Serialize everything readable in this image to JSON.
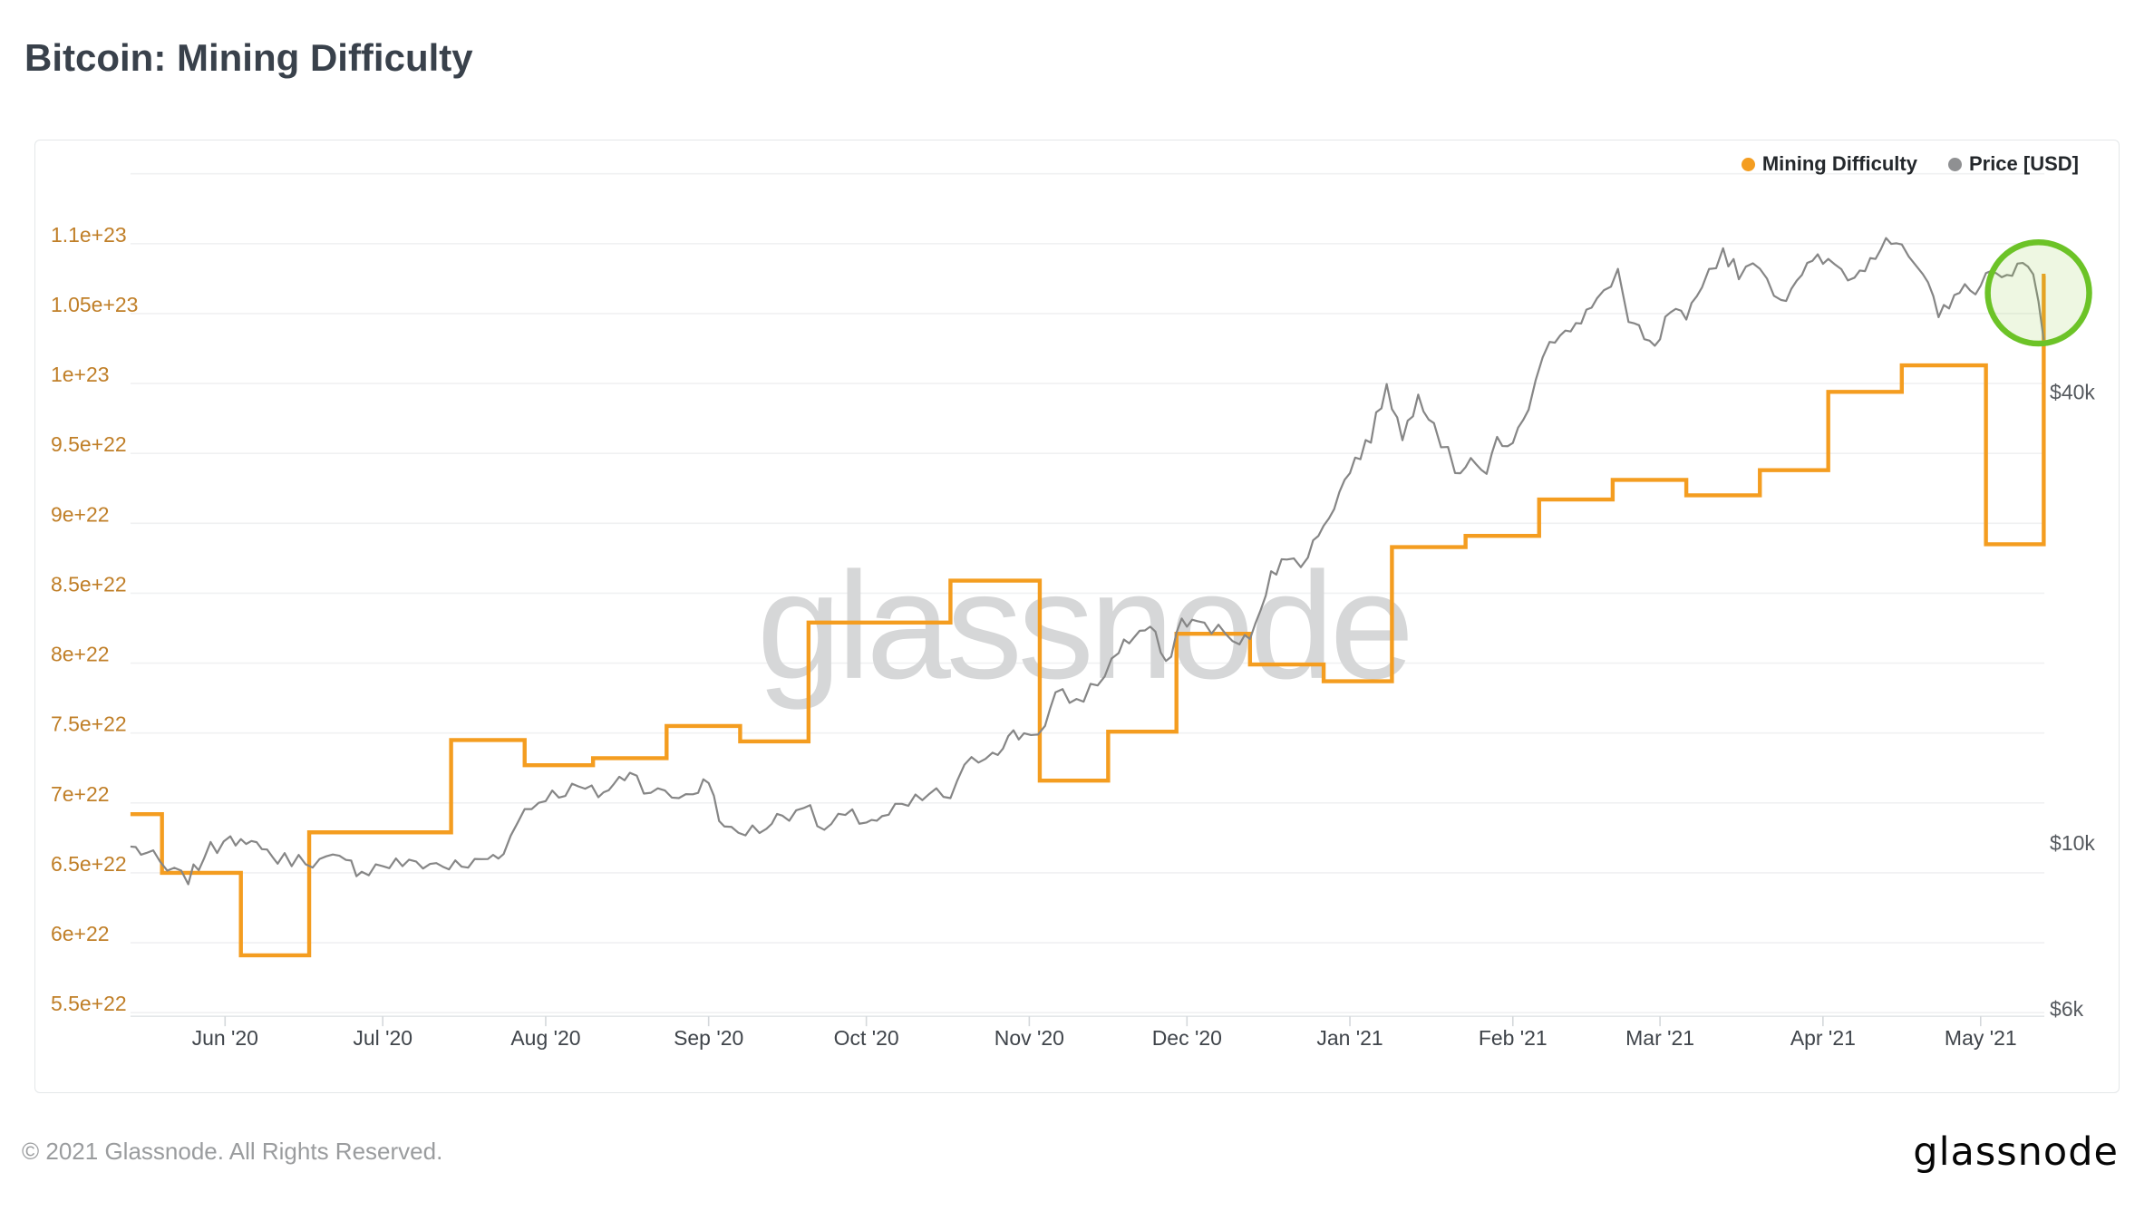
{
  "page": {
    "title": "Bitcoin: Mining Difficulty",
    "footer_copyright": "© 2021 Glassnode. All Rights Reserved.",
    "brand_logo": "glassnode"
  },
  "chart_data": {
    "type": "line",
    "title": "Bitcoin: Mining Difficulty",
    "watermark": "glassnode",
    "grid": "horizontal",
    "legend_position": "top-right",
    "colors": {
      "difficulty": "#f49d20",
      "price": "#868686",
      "left_axis_text": "#c07f28",
      "right_axis_text": "#55595e",
      "x_axis_text": "#3f444a",
      "gridline": "#f0f1f2",
      "annotation_green": "#6cc327"
    },
    "x_axis": {
      "start_date": "2020-05-14",
      "end_date": "2021-05-14",
      "ticks": [
        {
          "label": "Jun '20",
          "date": "2020-06-01"
        },
        {
          "label": "Jul '20",
          "date": "2020-07-01"
        },
        {
          "label": "Aug '20",
          "date": "2020-08-01"
        },
        {
          "label": "Sep '20",
          "date": "2020-09-01"
        },
        {
          "label": "Oct '20",
          "date": "2020-10-01"
        },
        {
          "label": "Nov '20",
          "date": "2020-11-01"
        },
        {
          "label": "Dec '20",
          "date": "2020-12-01"
        },
        {
          "label": "Jan '21",
          "date": "2021-01-01"
        },
        {
          "label": "Feb '21",
          "date": "2021-02-01"
        },
        {
          "label": "Mar '21",
          "date": "2021-03-01"
        },
        {
          "label": "Apr '21",
          "date": "2021-04-01"
        },
        {
          "label": "May '21",
          "date": "2021-05-01"
        }
      ]
    },
    "y_axis_left": {
      "series": "Mining Difficulty",
      "scale": "linear",
      "range": [
        5.5e+22,
        1.15e+23
      ],
      "ticks": [
        {
          "label": "5.5e+22",
          "value": 5.5e+22
        },
        {
          "label": "6e+22",
          "value": 6e+22
        },
        {
          "label": "6.5e+22",
          "value": 6.5e+22
        },
        {
          "label": "7e+22",
          "value": 7e+22
        },
        {
          "label": "7.5e+22",
          "value": 7.5e+22
        },
        {
          "label": "8e+22",
          "value": 8e+22
        },
        {
          "label": "8.5e+22",
          "value": 8.5e+22
        },
        {
          "label": "9e+22",
          "value": 9e+22
        },
        {
          "label": "9.5e+22",
          "value": 9.5e+22
        },
        {
          "label": "1e+23",
          "value": 1e+23
        },
        {
          "label": "1.05e+23",
          "value": 1.05e+23
        },
        {
          "label": "1.1e+23",
          "value": 1.1e+23
        }
      ]
    },
    "y_axis_right": {
      "series": "Price [USD]",
      "scale": "log",
      "ticks": [
        {
          "label": "$40k",
          "value": 40000
        },
        {
          "label": "$10k",
          "value": 10000
        },
        {
          "label": "$6k",
          "value": 6000
        }
      ]
    },
    "series": [
      {
        "name": "Mining Difficulty",
        "style": "step",
        "color": "#f49d20",
        "unit": "hashes",
        "points": [
          [
            "2020-05-14",
            6.92e+22
          ],
          [
            "2020-05-20",
            6.5e+22
          ],
          [
            "2020-06-04",
            5.91e+22
          ],
          [
            "2020-06-17",
            6.79e+22
          ],
          [
            "2020-07-01",
            6.79e+22
          ],
          [
            "2020-07-14",
            7.45e+22
          ],
          [
            "2020-07-28",
            7.27e+22
          ],
          [
            "2020-08-10",
            7.32e+22
          ],
          [
            "2020-08-24",
            7.55e+22
          ],
          [
            "2020-09-07",
            7.44e+22
          ],
          [
            "2020-09-20",
            8.29e+22
          ],
          [
            "2020-10-04",
            8.29e+22
          ],
          [
            "2020-10-17",
            8.59e+22
          ],
          [
            "2020-11-03",
            7.16e+22
          ],
          [
            "2020-11-16",
            7.51e+22
          ],
          [
            "2020-11-29",
            8.21e+22
          ],
          [
            "2020-12-13",
            7.99e+22
          ],
          [
            "2020-12-27",
            7.87e+22
          ],
          [
            "2021-01-09",
            8.83e+22
          ],
          [
            "2021-01-23",
            8.91e+22
          ],
          [
            "2021-02-06",
            9.17e+22
          ],
          [
            "2021-02-20",
            9.31e+22
          ],
          [
            "2021-03-06",
            9.2e+22
          ],
          [
            "2021-03-20",
            9.38e+22
          ],
          [
            "2021-04-02",
            9.94e+22
          ],
          [
            "2021-04-16",
            1.013e+23
          ],
          [
            "2021-05-02",
            8.85e+22
          ],
          [
            "2021-05-13",
            1.077e+23
          ]
        ]
      },
      {
        "name": "Price [USD]",
        "style": "line",
        "color": "#868686",
        "unit": "USD",
        "points": [
          [
            "2020-05-14",
            9750
          ],
          [
            "2020-05-17",
            9550
          ],
          [
            "2020-05-21",
            9050
          ],
          [
            "2020-05-25",
            8750
          ],
          [
            "2020-05-28",
            9450
          ],
          [
            "2020-06-02",
            10150
          ],
          [
            "2020-06-05",
            9750
          ],
          [
            "2020-06-08",
            9750
          ],
          [
            "2020-06-11",
            9300
          ],
          [
            "2020-06-15",
            9450
          ],
          [
            "2020-06-19",
            9350
          ],
          [
            "2020-06-24",
            9300
          ],
          [
            "2020-06-27",
            9050
          ],
          [
            "2020-07-01",
            9200
          ],
          [
            "2020-07-06",
            9300
          ],
          [
            "2020-07-10",
            9250
          ],
          [
            "2020-07-16",
            9150
          ],
          [
            "2020-07-21",
            9400
          ],
          [
            "2020-07-24",
            9600
          ],
          [
            "2020-07-28",
            10950
          ],
          [
            "2020-08-01",
            11300
          ],
          [
            "2020-08-06",
            11750
          ],
          [
            "2020-08-11",
            11400
          ],
          [
            "2020-08-14",
            11800
          ],
          [
            "2020-08-17",
            12300
          ],
          [
            "2020-08-21",
            11550
          ],
          [
            "2020-08-25",
            11350
          ],
          [
            "2020-08-29",
            11500
          ],
          [
            "2020-09-01",
            11900
          ],
          [
            "2020-09-04",
            10300
          ],
          [
            "2020-09-08",
            10150
          ],
          [
            "2020-09-12",
            10350
          ],
          [
            "2020-09-15",
            10750
          ],
          [
            "2020-09-19",
            11050
          ],
          [
            "2020-09-23",
            10250
          ],
          [
            "2020-09-27",
            10700
          ],
          [
            "2020-10-01",
            10550
          ],
          [
            "2020-10-04",
            10650
          ],
          [
            "2020-10-09",
            11050
          ],
          [
            "2020-10-13",
            11450
          ],
          [
            "2020-10-17",
            11350
          ],
          [
            "2020-10-21",
            12750
          ],
          [
            "2020-10-25",
            13050
          ],
          [
            "2020-10-28",
            13650
          ],
          [
            "2020-10-31",
            13800
          ],
          [
            "2020-11-04",
            14100
          ],
          [
            "2020-11-06",
            15550
          ],
          [
            "2020-11-10",
            15300
          ],
          [
            "2020-11-14",
            16050
          ],
          [
            "2020-11-18",
            17800
          ],
          [
            "2020-11-21",
            18650
          ],
          [
            "2020-11-24",
            19150
          ],
          [
            "2020-11-27",
            17100
          ],
          [
            "2020-11-30",
            19600
          ],
          [
            "2020-12-03",
            19400
          ],
          [
            "2020-12-07",
            19150
          ],
          [
            "2020-12-11",
            18050
          ],
          [
            "2020-12-14",
            19200
          ],
          [
            "2020-12-17",
            22850
          ],
          [
            "2020-12-20",
            23450
          ],
          [
            "2020-12-24",
            23750
          ],
          [
            "2020-12-27",
            26300
          ],
          [
            "2020-12-30",
            28950
          ],
          [
            "2021-01-02",
            32150
          ],
          [
            "2021-01-05",
            34000
          ],
          [
            "2021-01-08",
            40600
          ],
          [
            "2021-01-11",
            34050
          ],
          [
            "2021-01-14",
            39450
          ],
          [
            "2021-01-17",
            35850
          ],
          [
            "2021-01-21",
            30850
          ],
          [
            "2021-01-24",
            32300
          ],
          [
            "2021-01-27",
            30400
          ],
          [
            "2021-01-29",
            34300
          ],
          [
            "2021-02-01",
            33550
          ],
          [
            "2021-02-04",
            37650
          ],
          [
            "2021-02-08",
            46400
          ],
          [
            "2021-02-11",
            47900
          ],
          [
            "2021-02-14",
            48650
          ],
          [
            "2021-02-17",
            52250
          ],
          [
            "2021-02-21",
            57450
          ],
          [
            "2021-02-23",
            48900
          ],
          [
            "2021-02-26",
            46300
          ],
          [
            "2021-02-28",
            45150
          ],
          [
            "2021-03-03",
            50400
          ],
          [
            "2021-03-06",
            48900
          ],
          [
            "2021-03-09",
            54900
          ],
          [
            "2021-03-13",
            61250
          ],
          [
            "2021-03-16",
            56300
          ],
          [
            "2021-03-20",
            58100
          ],
          [
            "2021-03-24",
            52350
          ],
          [
            "2021-03-27",
            55850
          ],
          [
            "2021-03-30",
            58750
          ],
          [
            "2021-04-02",
            59050
          ],
          [
            "2021-04-07",
            56000
          ],
          [
            "2021-04-10",
            59800
          ],
          [
            "2021-04-13",
            63550
          ],
          [
            "2021-04-16",
            61550
          ],
          [
            "2021-04-20",
            56250
          ],
          [
            "2021-04-23",
            49600
          ],
          [
            "2021-04-26",
            53500
          ],
          [
            "2021-04-29",
            53750
          ],
          [
            "2021-05-02",
            56600
          ],
          [
            "2021-05-05",
            55850
          ],
          [
            "2021-05-08",
            58850
          ],
          [
            "2021-05-11",
            56700
          ],
          [
            "2021-05-12",
            52000
          ],
          [
            "2021-05-13",
            46300
          ]
        ]
      }
    ],
    "annotation": {
      "shape": "circle",
      "date": "2021-05-12",
      "center_price": 53500,
      "radius_px": 56,
      "stroke": "#6cc327",
      "fill_rgba": "rgba(141,198,63,0.15)"
    }
  }
}
